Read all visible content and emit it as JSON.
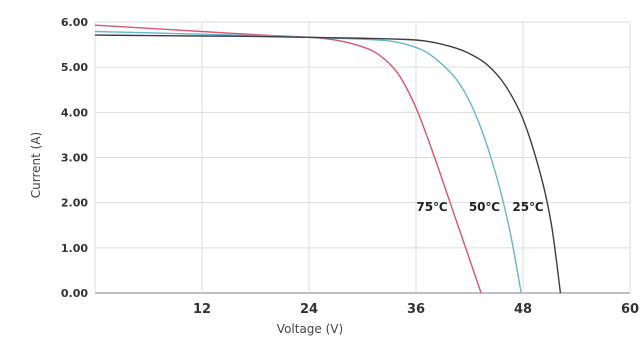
{
  "chart_data": {
    "type": "line",
    "xlabel": "Voltage (V)",
    "ylabel": "Current (A)",
    "xlim": [
      0,
      60
    ],
    "ylim": [
      0,
      6
    ],
    "x_ticks": [
      "12",
      "24",
      "36",
      "48",
      "60"
    ],
    "y_ticks": [
      "0.00",
      "1.00",
      "2.00",
      "3.00",
      "4.00",
      "5.00",
      "6.00"
    ],
    "grid": true,
    "series": [
      {
        "name": "75℃",
        "color": "#d9566f",
        "x": [
          0,
          6,
          12,
          18,
          24,
          27,
          30,
          32,
          34,
          36,
          38,
          40,
          42,
          43.3
        ],
        "y": [
          5.93,
          5.86,
          5.79,
          5.72,
          5.66,
          5.6,
          5.45,
          5.25,
          4.85,
          4.1,
          3.05,
          1.9,
          0.75,
          0
        ]
      },
      {
        "name": "50℃",
        "color": "#67b6cc",
        "x": [
          0,
          6,
          12,
          18,
          24,
          27,
          30,
          33,
          35,
          37,
          39,
          41,
          43,
          45,
          46.5,
          47.8
        ],
        "y": [
          5.79,
          5.76,
          5.73,
          5.7,
          5.66,
          5.64,
          5.62,
          5.58,
          5.5,
          5.35,
          5.05,
          4.6,
          3.8,
          2.6,
          1.4,
          0
        ]
      },
      {
        "name": "25℃",
        "color": "#3c3c44",
        "x": [
          0,
          6,
          12,
          18,
          24,
          30,
          34,
          37,
          40,
          42,
          44,
          46,
          48,
          50,
          51.2,
          52.2
        ],
        "y": [
          5.71,
          5.7,
          5.69,
          5.68,
          5.66,
          5.64,
          5.62,
          5.58,
          5.45,
          5.3,
          5.05,
          4.6,
          3.85,
          2.6,
          1.5,
          0
        ]
      }
    ]
  }
}
